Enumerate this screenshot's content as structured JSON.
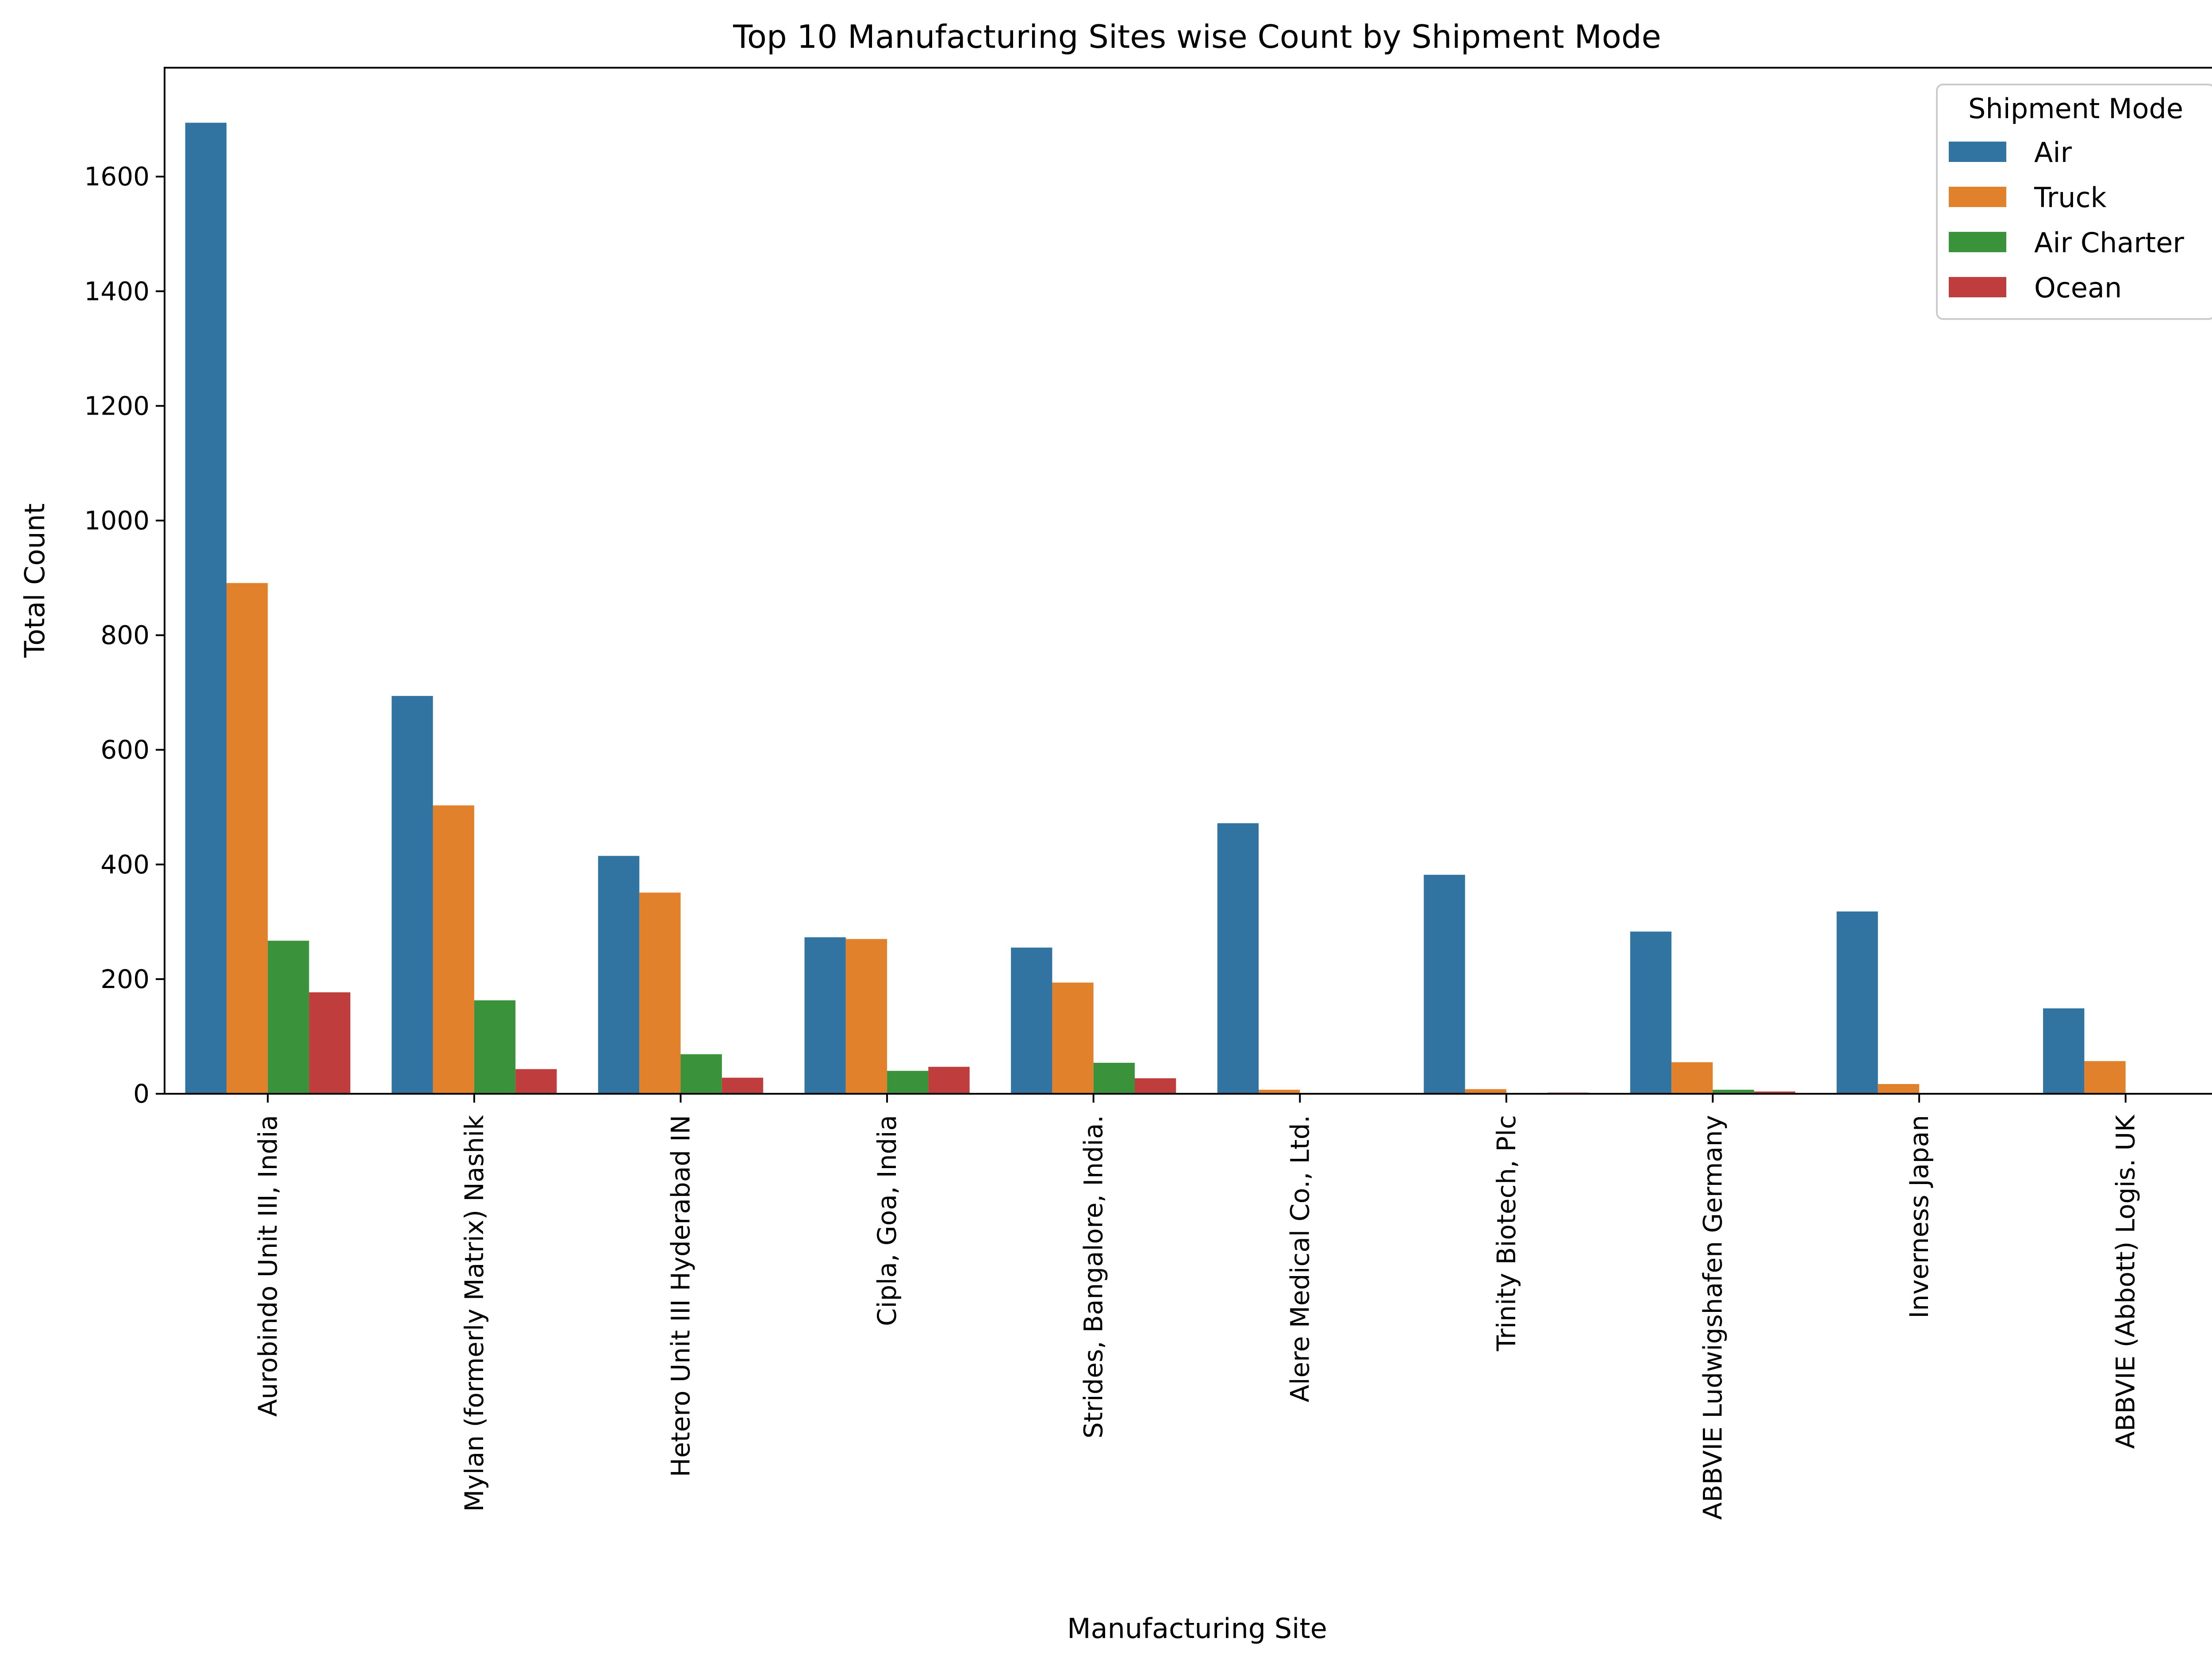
{
  "chart_data": {
    "type": "bar",
    "title": "Top 10 Manufacturing Sites wise Count by Shipment Mode",
    "xlabel": "Manufacturing Site",
    "ylabel": "Total Count",
    "ylim": [
      0,
      1790
    ],
    "yticks": [
      0,
      200,
      400,
      600,
      800,
      1000,
      1200,
      1400,
      1600
    ],
    "grid": false,
    "legend": {
      "title": "Shipment Mode",
      "position": "top-right"
    },
    "categories": [
      "Aurobindo Unit III, India",
      "Mylan (formerly Matrix) Nashik",
      "Hetero Unit III Hyderabad IN",
      "Cipla, Goa, India",
      "Strides, Bangalore, India.",
      "Alere Medical Co., Ltd.",
      "Trinity Biotech, Plc",
      "ABBVIE Ludwigshafen Germany",
      "Inverness Japan",
      "ABBVIE (Abbott) Logis. UK"
    ],
    "series": [
      {
        "name": "Air",
        "color": "#3274a1",
        "values": [
          1694,
          694,
          415,
          273,
          255,
          472,
          382,
          283,
          318,
          149
        ]
      },
      {
        "name": "Truck",
        "color": "#e1812c",
        "values": [
          891,
          503,
          351,
          270,
          194,
          7,
          8,
          55,
          17,
          57
        ]
      },
      {
        "name": "Air Charter",
        "color": "#3a923a",
        "values": [
          267,
          163,
          69,
          40,
          54,
          0,
          0,
          7,
          0,
          0
        ]
      },
      {
        "name": "Ocean",
        "color": "#c03d3e",
        "values": [
          177,
          43,
          28,
          47,
          27,
          0,
          2,
          4,
          0,
          0
        ]
      }
    ]
  }
}
